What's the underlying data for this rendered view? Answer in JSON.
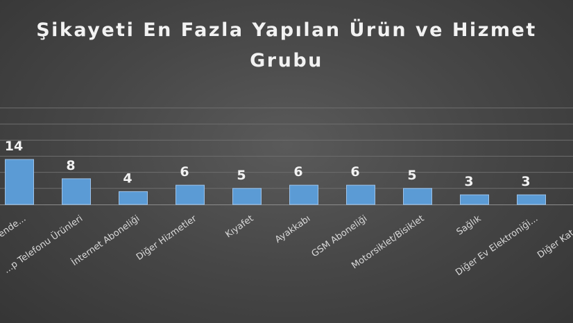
{
  "chart_data": {
    "type": "bar",
    "title": "Şikayeti En Fazla Yapılan Ürün ve Hizmet Grubu",
    "title_lines": [
      "Şikayeti En Fazla Yapılan Ürün ve Hizmet",
      "Grubu"
    ],
    "categories": [
      "...ende...",
      "...p Telefonu Ürünleri",
      "İnternet Aboneliği",
      "Diğer Hizmetler",
      "Kıyafet",
      "Ayakkabı",
      "GSM Aboneliği",
      "Motorsiklet/Bisiklet",
      "Sağlık",
      "Diğer Ev Elektroniği...",
      "Diğer Katego..."
    ],
    "values": [
      14,
      8,
      4,
      6,
      5,
      6,
      6,
      5,
      3,
      3,
      null
    ],
    "data_labels": [
      "14",
      "8",
      "4",
      "6",
      "5",
      "6",
      "6",
      "5",
      "3",
      "3",
      ""
    ],
    "ylim": [
      0,
      30
    ],
    "grid": true,
    "legend": "none",
    "colors": {
      "bar_fill": "#5b9bd5",
      "bar_edge": "#9dc3ea",
      "gridline": "#6e6e6e",
      "text": "#f2f2f2",
      "axis_label": "#d9d9d9"
    }
  }
}
